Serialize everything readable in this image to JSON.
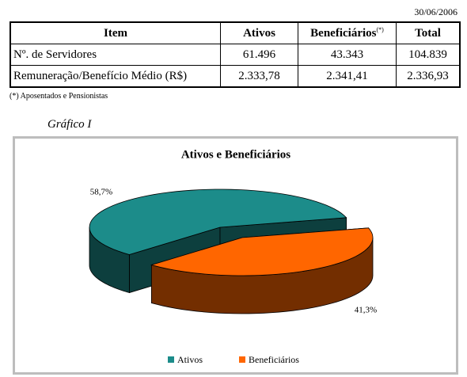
{
  "date": "30/06/2006",
  "table": {
    "header": [
      "Item",
      "Ativos",
      "Beneficiários",
      "Total"
    ],
    "header_note": "(*)",
    "rows": [
      [
        "Nº. de Servidores",
        "61.496",
        "43.343",
        "104.839"
      ],
      [
        "Remuneração/Benefício Médio (R$)",
        "2.333,78",
        "2.341,41",
        "2.336,93"
      ]
    ]
  },
  "footnote": "(*) Aposentados e Pensionistas",
  "chart_caption": "Gráfico I",
  "chart_data": {
    "type": "pie",
    "title": "Ativos e Beneficiários",
    "categories": [
      "Ativos",
      "Beneficiários"
    ],
    "values": [
      58.7,
      41.3
    ],
    "value_labels": [
      "58,7%",
      "41,3%"
    ],
    "colors": [
      "#1c8c8a",
      "#ff6600"
    ]
  }
}
